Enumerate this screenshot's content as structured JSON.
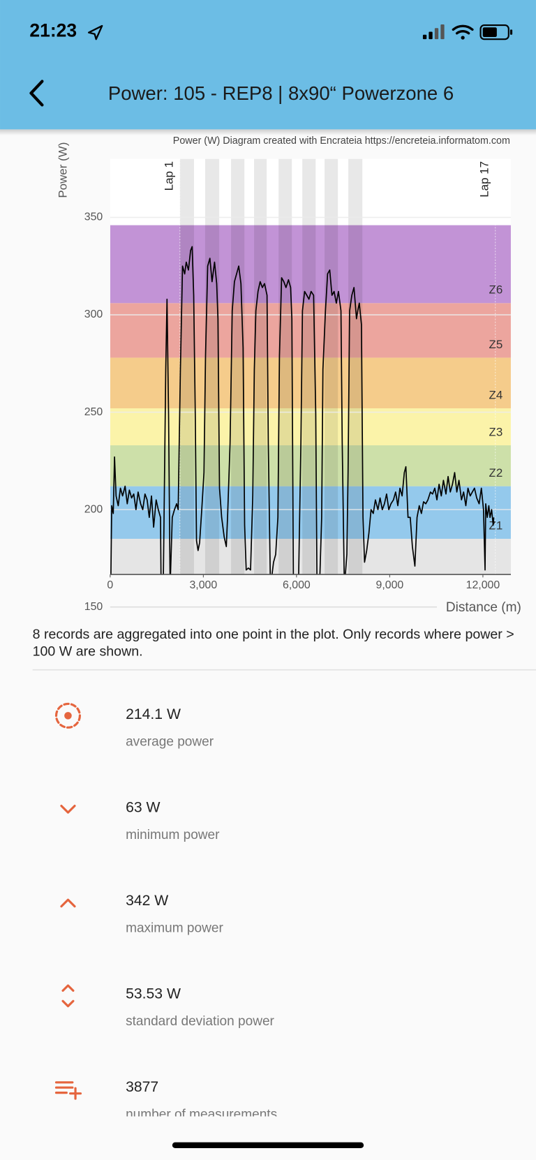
{
  "status_bar": {
    "time": "21:23"
  },
  "header": {
    "title": "Power: 105 - REP8 | 8x90“ Powerzone 6"
  },
  "chart_data": {
    "type": "line",
    "title": "Power (W) Diagram created with Encrateia https://encreteia.informatom.com",
    "x_label": "Distance (m)",
    "y_label": "Power (W)",
    "color": "#000000",
    "x": [
      20,
      50,
      100,
      140,
      190,
      260,
      330,
      400,
      480,
      550,
      620,
      690,
      760,
      830,
      900,
      980,
      1050,
      1120,
      1190,
      1260,
      1330,
      1400,
      1480,
      1550,
      1620,
      1640,
      1710,
      1790,
      1830,
      1880,
      1930,
      2000,
      2070,
      2140,
      2190,
      2260,
      2330,
      2400,
      2450,
      2520,
      2590,
      2640,
      2690,
      2740,
      2780,
      2830,
      2880,
      2950,
      3020,
      3070,
      3140,
      3210,
      3280,
      3360,
      3430,
      3470,
      3520,
      3590,
      3670,
      3740,
      3780,
      3860,
      3930,
      4000,
      4070,
      4140,
      4210,
      4280,
      4330,
      4380,
      4450,
      4520,
      4590,
      4640,
      4690,
      4760,
      4830,
      4900,
      4970,
      5050,
      5090,
      5160,
      5260,
      5330,
      5400,
      5450,
      5520,
      5590,
      5660,
      5740,
      5810,
      5850,
      5900,
      6020,
      6070,
      6140,
      6190,
      6260,
      6330,
      6400,
      6470,
      6550,
      6620,
      6660,
      6740,
      6810,
      6850,
      6930,
      7000,
      7070,
      7140,
      7210,
      7280,
      7350,
      7430,
      7470,
      7540,
      7620,
      7660,
      7710,
      7780,
      7850,
      7930,
      7970,
      8020,
      8090,
      8140,
      8190,
      8260,
      8330,
      8400,
      8470,
      8540,
      8620,
      8690,
      8760,
      8830,
      8900,
      8970,
      9040,
      9120,
      9190,
      9260,
      9330,
      9400,
      9470,
      9520,
      9590,
      9660,
      9730,
      9810,
      9880,
      9950,
      10020,
      10090,
      10160,
      10230,
      10310,
      10380,
      10450,
      10520,
      10590,
      10660,
      10730,
      10810,
      10880,
      10950,
      11020,
      11090,
      11160,
      11230,
      11310,
      11380,
      11450,
      11520,
      11590,
      11660,
      11730,
      11800,
      11880,
      11950,
      12020,
      12070,
      12090,
      12140,
      12190,
      12230,
      12280,
      12330,
      12350
    ],
    "values": [
      160,
      202,
      198,
      227,
      207,
      202,
      211,
      207,
      212,
      203,
      210,
      206,
      208,
      200,
      209,
      203,
      200,
      208,
      205,
      196,
      207,
      191,
      205,
      200,
      196,
      160,
      160,
      272,
      308,
      249,
      160,
      196,
      200,
      203,
      200,
      272,
      325,
      321,
      327,
      323,
      333,
      335,
      310,
      249,
      184,
      179,
      183,
      200,
      219,
      279,
      325,
      329,
      317,
      327,
      316,
      298,
      211,
      196,
      186,
      181,
      196,
      234,
      302,
      317,
      321,
      325,
      316,
      283,
      192,
      169,
      170,
      169,
      207,
      272,
      302,
      312,
      317,
      314,
      316,
      310,
      234,
      160,
      173,
      177,
      196,
      279,
      319,
      317,
      314,
      318,
      314,
      298,
      160,
      160,
      167,
      234,
      302,
      312,
      310,
      308,
      312,
      310,
      249,
      160,
      160,
      196,
      272,
      302,
      321,
      323,
      310,
      312,
      306,
      312,
      302,
      234,
      160,
      177,
      219,
      302,
      310,
      314,
      298,
      302,
      306,
      295,
      196,
      173,
      179,
      188,
      200,
      198,
      205,
      200,
      206,
      200,
      203,
      208,
      200,
      203,
      205,
      209,
      202,
      211,
      207,
      219,
      222,
      196,
      196,
      181,
      171,
      196,
      202,
      198,
      204,
      203,
      205,
      209,
      208,
      211,
      205,
      213,
      207,
      215,
      208,
      217,
      209,
      213,
      219,
      209,
      215,
      205,
      209,
      202,
      211,
      207,
      209,
      211,
      206,
      203,
      211,
      200,
      169,
      203,
      196,
      202,
      196,
      200,
      192,
      196
    ],
    "xlim": [
      0,
      12900
    ],
    "xticks": [
      0,
      {
        "value": 3000,
        "label": "3,000"
      },
      {
        "value": 6000,
        "label": "6,000"
      },
      {
        "value": 9000,
        "label": "9,000"
      },
      {
        "value": 12000,
        "label": "12,000"
      }
    ],
    "ylim": [
      150,
      380
    ],
    "yticks": [
      150,
      200,
      250,
      300,
      350
    ],
    "grid": true,
    "zones": [
      {
        "label": null,
        "from": 150,
        "to": 185,
        "color": "#e5e5e5"
      },
      {
        "label": "Z1",
        "from": 185,
        "to": 212,
        "color": "#94c9ec"
      },
      {
        "label": "Z2",
        "from": 212,
        "to": 233,
        "color": "#cde0a9"
      },
      {
        "label": "Z3",
        "from": 233,
        "to": 252,
        "color": "#fbf3a9"
      },
      {
        "label": "Z4",
        "from": 252,
        "to": 278,
        "color": "#f5cc8b"
      },
      {
        "label": "Z5",
        "from": 278,
        "to": 306,
        "color": "#eca59e"
      },
      {
        "label": "Z6",
        "from": 306,
        "to": 346,
        "color": "#c293d6"
      }
    ],
    "lap_bands": [
      [
        2245,
        2699
      ],
      [
        3057,
        3511
      ],
      [
        3893,
        4323
      ],
      [
        4633,
        5039
      ],
      [
        5422,
        5851
      ],
      [
        6186,
        6616
      ],
      [
        6902,
        7332
      ],
      [
        7667,
        8120
      ]
    ],
    "laps": [
      {
        "label": "Lap 1",
        "x": 2245
      },
      {
        "label": "Lap 17",
        "x": 12400
      }
    ]
  },
  "note": "8 records are aggregated into one point in the plot. Only records where power > 100 W are shown.",
  "stats": [
    {
      "value": "214.1 W",
      "label": "average power"
    },
    {
      "value": "63 W",
      "label": "minimum power"
    },
    {
      "value": "342 W",
      "label": "maximum power"
    },
    {
      "value": "53.53 W",
      "label": "standard deviation power"
    },
    {
      "value": "3877",
      "label": "number of measurements"
    }
  ]
}
